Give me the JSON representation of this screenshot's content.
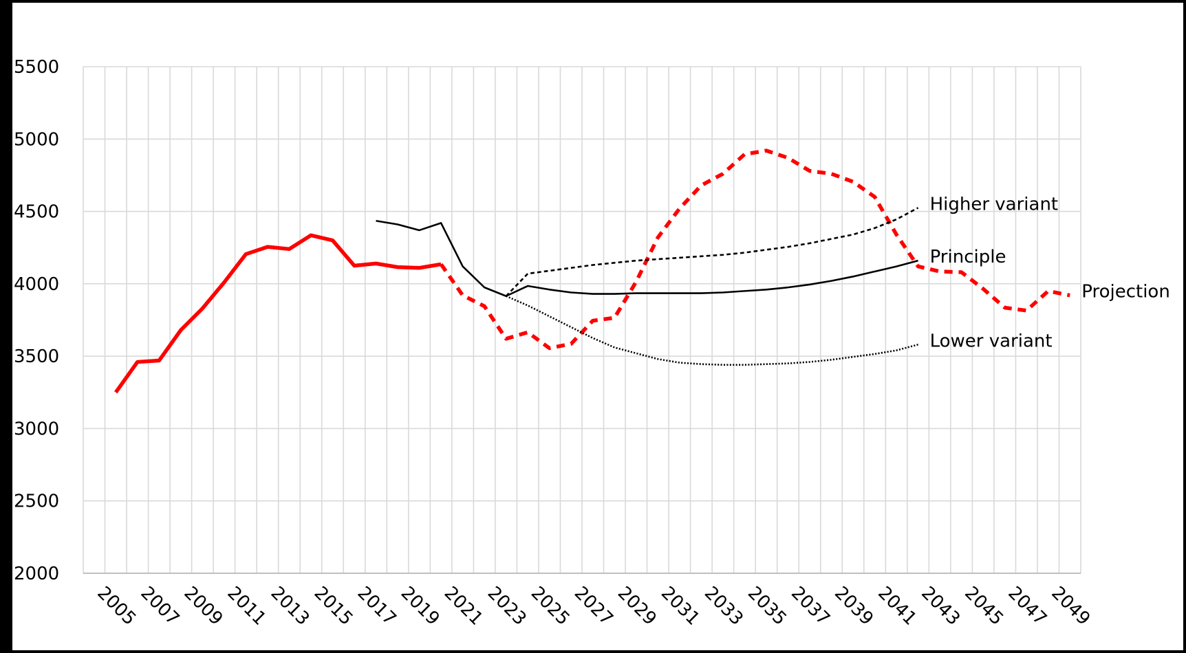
{
  "chart_data": {
    "type": "line",
    "categories": [
      null,
      "2005",
      null,
      "2007",
      null,
      "2009",
      null,
      "2011",
      null,
      "2013",
      null,
      "2015",
      null,
      "2017",
      null,
      "2019",
      null,
      "2021",
      null,
      "2023",
      null,
      "2025",
      null,
      "2027",
      null,
      "2029",
      null,
      "2031",
      null,
      "2033",
      null,
      "2035",
      null,
      "2037",
      null,
      "2039",
      null,
      "2041",
      null,
      "2043",
      null,
      "2045",
      null,
      "2047",
      null,
      "2049"
    ],
    "ylim": [
      2000,
      5500
    ],
    "yticks": [
      2000,
      2500,
      3000,
      3500,
      4000,
      4500,
      5000,
      5500
    ],
    "grid": true,
    "series": [
      {
        "color": "#ff0000",
        "line_style": "solid",
        "line_width": 5.5,
        "values": [
          null,
          3250,
          3460,
          3470,
          3680,
          3830,
          4010,
          4205,
          4255,
          4240,
          4335,
          4300,
          4125,
          4140,
          4115,
          4110,
          4135,
          null,
          null,
          null,
          null,
          null,
          null,
          null,
          null,
          null,
          null,
          null,
          null,
          null,
          null,
          null,
          null,
          null,
          null,
          null,
          null,
          null,
          null,
          null,
          null,
          null,
          null,
          null,
          null,
          null
        ]
      },
      {
        "name": "Projection",
        "color": "#ff0000",
        "line_style": "dashed",
        "line_width": 5.5,
        "values": [
          null,
          null,
          null,
          null,
          null,
          null,
          null,
          null,
          null,
          null,
          null,
          null,
          null,
          null,
          null,
          null,
          4135,
          3920,
          3845,
          3620,
          3665,
          3555,
          3585,
          3745,
          3765,
          4015,
          4320,
          4520,
          4680,
          4760,
          4895,
          4920,
          4870,
          4780,
          4760,
          4705,
          4600,
          4340,
          4120,
          4085,
          4080,
          3965,
          3835,
          3815,
          3950,
          3920
        ]
      },
      {
        "name": "Principle",
        "color": "#000000",
        "line_style": "solid",
        "line_width": 2.6,
        "values": [
          null,
          null,
          null,
          null,
          null,
          null,
          null,
          null,
          null,
          null,
          null,
          null,
          null,
          4435,
          4410,
          4370,
          4420,
          4120,
          3975,
          3915,
          3985,
          3960,
          3940,
          3930,
          3930,
          3935,
          3935,
          3935,
          3935,
          3940,
          3950,
          3960,
          3975,
          3995,
          4020,
          4050,
          4085,
          4120,
          4160,
          null,
          null,
          null,
          null,
          null,
          null,
          null
        ]
      },
      {
        "name": "Higher variant",
        "color": "#000000",
        "line_style": "dashed",
        "line_width": 2.6,
        "values": [
          null,
          null,
          null,
          null,
          null,
          null,
          null,
          null,
          null,
          null,
          null,
          null,
          null,
          null,
          null,
          null,
          null,
          null,
          null,
          3915,
          4070,
          4090,
          4110,
          4130,
          4145,
          4160,
          4170,
          4180,
          4190,
          4200,
          4215,
          4235,
          4255,
          4280,
          4310,
          4340,
          4385,
          4445,
          4525,
          null,
          null,
          null,
          null,
          null,
          null,
          null
        ]
      },
      {
        "name": "Lower variant",
        "color": "#000000",
        "line_style": "dotted",
        "line_width": 2.6,
        "values": [
          null,
          null,
          null,
          null,
          null,
          null,
          null,
          null,
          null,
          null,
          null,
          null,
          null,
          null,
          null,
          null,
          null,
          null,
          null,
          3915,
          3850,
          3775,
          3700,
          3625,
          3560,
          3520,
          3480,
          3455,
          3445,
          3440,
          3440,
          3445,
          3450,
          3460,
          3475,
          3495,
          3515,
          3540,
          3580,
          null,
          null,
          null,
          null,
          null,
          null,
          null
        ]
      }
    ]
  }
}
